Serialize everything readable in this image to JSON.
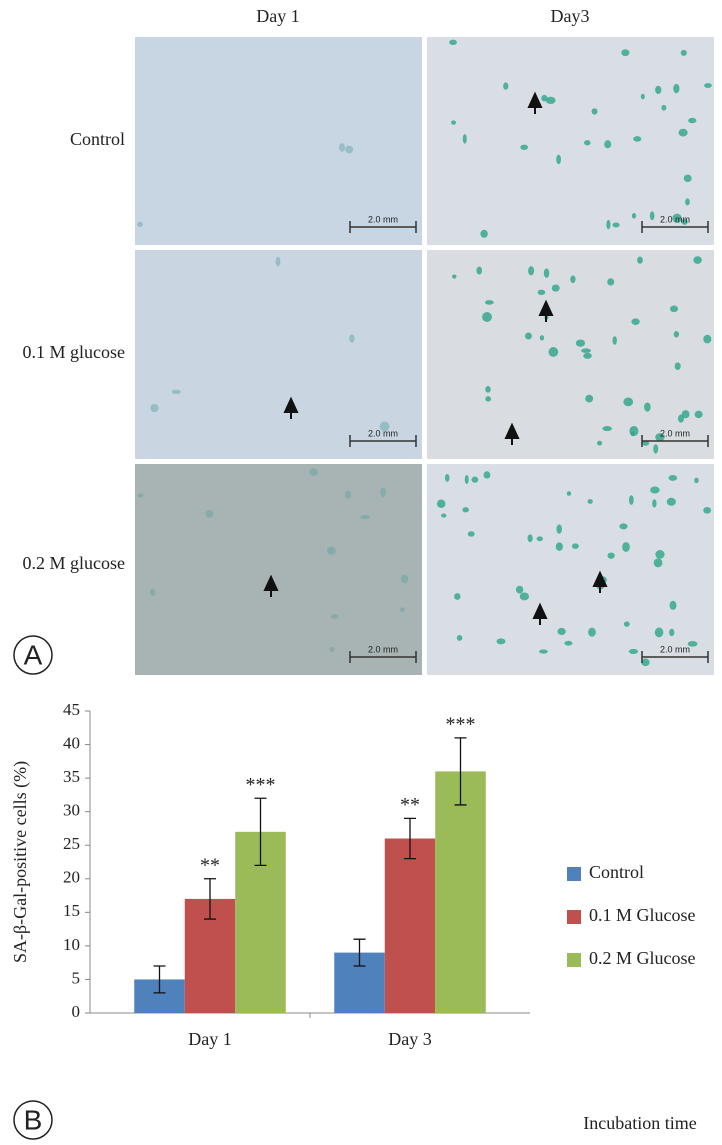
{
  "panel_a": {
    "label": "A",
    "columns": [
      "Day 1",
      "Day3"
    ],
    "rows": [
      "Control",
      "0.1 M glucose",
      "0.2 M glucose"
    ],
    "scale_bar": "2.0 mm"
  },
  "chart_data": {
    "type": "bar",
    "label": "B",
    "y_label": "SA-β-Gal-positive cells (%)",
    "x_label": "Incubation time",
    "categories": [
      "Day 1",
      "Day 3"
    ],
    "series": [
      {
        "name": "Control",
        "color": "#4f81bd",
        "values": [
          5,
          9
        ],
        "errors": [
          2,
          2
        ]
      },
      {
        "name": "0.1 M Glucose",
        "color": "#c0504d",
        "values": [
          17,
          26
        ],
        "errors": [
          3,
          3
        ],
        "significance": [
          "**",
          "**"
        ]
      },
      {
        "name": "0.2 M Glucose",
        "color": "#9bbb59",
        "values": [
          27,
          36
        ],
        "errors": [
          5,
          5
        ],
        "significance": [
          "***",
          "***"
        ]
      }
    ],
    "ylim": [
      0,
      45
    ],
    "yticks": [
      0,
      5,
      10,
      15,
      20,
      25,
      30,
      35,
      40,
      45
    ],
    "legend": "right"
  }
}
